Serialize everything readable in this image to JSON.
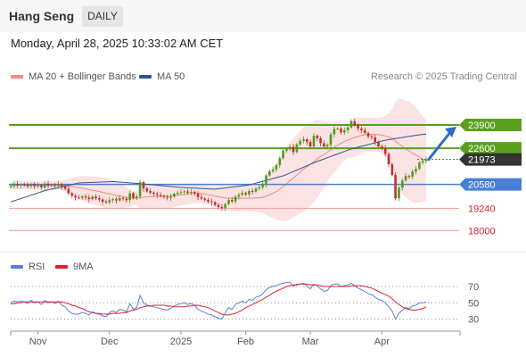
{
  "header": {
    "title": "Hang Seng",
    "timeframe_button": "DAILY"
  },
  "timestamp": "Monday, April 28, 2025 10:33:02 AM CET",
  "legend": {
    "items": [
      {
        "label": "MA 20 + Bollinger Bands",
        "color": "#f28b82"
      },
      {
        "label": "MA 50",
        "color": "#2f5597"
      }
    ],
    "credit": "Research © 2025 Trading Central"
  },
  "rsi_legend": {
    "items": [
      {
        "label": "RSI",
        "color": "#5b7fd6"
      },
      {
        "label": "9MA",
        "color": "#d9232d"
      }
    ]
  },
  "colors": {
    "resistance": "#5aa01e",
    "pivot": "#4a7fd6",
    "support": "#f4a6a6",
    "support_text": "#d9232d",
    "candle_up": "#4e9a1f",
    "candle_down": "#c0322b",
    "arrow": "#2d6bc4",
    "last_price_bg": "#333333"
  },
  "chart_data": [
    {
      "type": "candlestick",
      "title": "Hang Seng",
      "ylim": [
        17000,
        25000
      ],
      "x_tick_labels": [
        "Nov",
        "Dec",
        "2025",
        "Feb",
        "Mar",
        "Apr"
      ],
      "levels": [
        {
          "value": 23900,
          "label": "23900",
          "kind": "resistance"
        },
        {
          "value": 22600,
          "label": "22600",
          "kind": "resistance"
        },
        {
          "value": 20580,
          "label": "20580",
          "kind": "pivot"
        },
        {
          "value": 19240,
          "label": "19240",
          "kind": "support"
        },
        {
          "value": 18000,
          "label": "18000",
          "kind": "support"
        }
      ],
      "last_price": {
        "value": 21973,
        "label": "21973"
      },
      "close_series": [
        20480,
        20610,
        20520,
        20560,
        20540,
        20470,
        20590,
        20480,
        20520,
        20410,
        20620,
        20510,
        20540,
        20490,
        20600,
        20450,
        20330,
        20080,
        19940,
        19850,
        19830,
        19910,
        19850,
        19760,
        19900,
        19810,
        19740,
        19620,
        19580,
        19700,
        19760,
        19680,
        19820,
        19780,
        19700,
        20080,
        19820,
        19910,
        20700,
        20350,
        20200,
        20120,
        20050,
        19990,
        19930,
        19880,
        19830,
        19900,
        20050,
        20110,
        20150,
        20190,
        20100,
        20160,
        20080,
        19870,
        19790,
        19720,
        19630,
        19580,
        19430,
        19320,
        19270,
        19480,
        19710,
        19630,
        19900,
        20000,
        20100,
        20020,
        20210,
        20180,
        20350,
        20420,
        20580,
        21080,
        21320,
        21420,
        21660,
        22040,
        22460,
        22580,
        22680,
        22390,
        22820,
        23010,
        23100,
        22950,
        22700,
        23300,
        23150,
        22880,
        22700,
        22790,
        23370,
        23680,
        23700,
        23480,
        23600,
        23760,
        24100,
        23900,
        23700,
        23600,
        23450,
        23250,
        23200,
        22950,
        22700,
        22600,
        22280,
        21700,
        21100,
        19800,
        20400,
        20800,
        21050,
        21000,
        21300,
        21450,
        21800,
        21900,
        21973
      ],
      "ma50_series": [
        19600,
        19663,
        19726,
        19789,
        19852,
        19915,
        19978,
        20041,
        20104,
        20167,
        20230,
        20273,
        20316,
        20359,
        20402,
        20445,
        20488,
        20531,
        20574,
        20617,
        20660,
        20668,
        20676,
        20684,
        20692,
        20700,
        20708,
        20716,
        20724,
        20732,
        20740,
        20725,
        20710,
        20695,
        20680,
        20665,
        20650,
        20635,
        20620,
        20605,
        20590,
        20572,
        20554,
        20536,
        20518,
        20500,
        20482,
        20464,
        20446,
        20428,
        20410,
        20400,
        20390,
        20380,
        20370,
        20360,
        20350,
        20340,
        20330,
        20320,
        20310,
        20334,
        20358,
        20382,
        20406,
        20430,
        20454,
        20478,
        20502,
        20526,
        20550,
        20601,
        20652,
        20703,
        20754,
        20805,
        20856,
        20907,
        20958,
        21009,
        21060,
        21140,
        21220,
        21300,
        21380,
        21460,
        21540,
        21620,
        21700,
        21780,
        21860,
        21930,
        22000,
        22070,
        22140,
        22210,
        22280,
        22350,
        22420,
        22490,
        22560,
        22609,
        22658,
        22707,
        22756,
        22805,
        22854,
        22903,
        22952,
        23001,
        23050,
        23080,
        23110,
        23140,
        23170,
        23200,
        23230,
        23260,
        23290,
        23320,
        23350,
        23370,
        23390
      ]
    },
    {
      "type": "line",
      "title": "RSI",
      "ylim": [
        20,
        80
      ],
      "y_tick_labels": [
        "70",
        "50",
        "30"
      ],
      "reference_lines": [
        70,
        50,
        30
      ],
      "series": [
        {
          "name": "RSI",
          "values": [
            50,
            52,
            51,
            52,
            51,
            49,
            53,
            50,
            51,
            48,
            53,
            50,
            51,
            49,
            52,
            47,
            45,
            40,
            37,
            36,
            36,
            38,
            37,
            35,
            39,
            37,
            36,
            34,
            33,
            38,
            40,
            38,
            42,
            41,
            39,
            49,
            42,
            44,
            59,
            50,
            47,
            46,
            45,
            44,
            43,
            42,
            41,
            43,
            46,
            48,
            49,
            50,
            48,
            49,
            47,
            42,
            40,
            38,
            36,
            35,
            33,
            31,
            30,
            38,
            44,
            42,
            48,
            50,
            52,
            50,
            54,
            53,
            57,
            58,
            61,
            66,
            69,
            70,
            71,
            73,
            74,
            75,
            75,
            70,
            73,
            73,
            74,
            71,
            67,
            73,
            71,
            67,
            64,
            65,
            71,
            73,
            73,
            70,
            71,
            72,
            74,
            71,
            68,
            66,
            64,
            61,
            60,
            57,
            54,
            53,
            50,
            45,
            40,
            30,
            37,
            41,
            44,
            43,
            46,
            47,
            50,
            50,
            51
          ]
        },
        {
          "name": "9MA",
          "values": [
            49,
            49,
            50,
            50,
            51,
            51,
            51,
            51,
            51,
            51,
            51,
            51,
            51,
            51,
            51,
            51,
            50,
            49,
            47,
            46,
            44,
            43,
            41,
            39,
            38,
            37,
            37,
            36,
            36,
            36,
            37,
            37,
            37,
            38,
            38,
            40,
            41,
            42,
            44,
            45,
            46,
            46,
            47,
            47,
            47,
            47,
            46,
            46,
            45,
            45,
            45,
            45,
            46,
            46,
            47,
            47,
            46,
            45,
            44,
            42,
            40,
            38,
            36,
            35,
            35,
            36,
            37,
            39,
            41,
            44,
            46,
            48,
            50,
            52,
            54,
            57,
            59,
            62,
            64,
            66,
            68,
            70,
            71,
            72,
            72,
            73,
            73,
            73,
            72,
            72,
            72,
            71,
            70,
            70,
            70,
            70,
            70,
            70,
            70,
            70,
            71,
            71,
            71,
            71,
            70,
            69,
            68,
            66,
            64,
            62,
            60,
            58,
            55,
            51,
            48,
            45,
            43,
            42,
            41,
            41,
            42,
            43,
            45
          ]
        }
      ]
    }
  ]
}
